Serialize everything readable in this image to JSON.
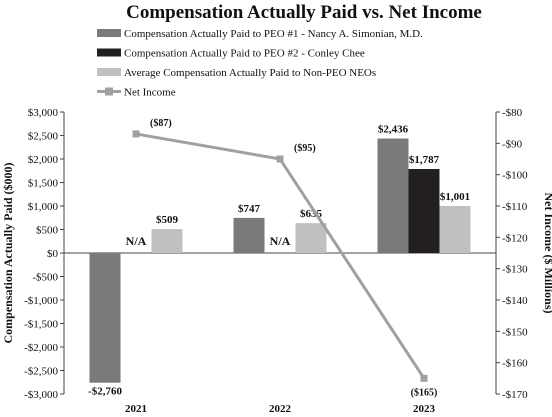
{
  "chart_data": {
    "type": "bar",
    "title": "Compensation Actually Paid vs. Net Income",
    "categories": [
      "2021",
      "2022",
      "2023"
    ],
    "series": [
      {
        "name": "Compensation Actually Paid to PEO #1 - Nancy A. Simonian, M.D.",
        "kind": "bar",
        "axis": "left",
        "color": "#7a7a7a",
        "values": [
          -2760,
          747,
          2436
        ],
        "labels": [
          "-$2,760",
          "$747",
          "$2,436"
        ]
      },
      {
        "name": "Compensation Actually Paid to PEO #2 - Conley Chee",
        "kind": "bar",
        "axis": "left",
        "color": "#231f20",
        "values": [
          null,
          null,
          1787
        ],
        "labels": [
          "N/A",
          "N/A",
          "$1,787"
        ]
      },
      {
        "name": "Average Compensation Actually Paid to Non-PEO NEOs",
        "kind": "bar",
        "axis": "left",
        "color": "#c0c0c0",
        "values": [
          509,
          635,
          1001
        ],
        "labels": [
          "$509",
          "$635",
          "$1,001"
        ]
      },
      {
        "name": "Net Income",
        "kind": "line",
        "axis": "right",
        "color": "#a0a0a0",
        "marker": "square",
        "values": [
          -87,
          -95,
          -165
        ],
        "labels": [
          "($87)",
          "($95)",
          "($165)"
        ]
      }
    ],
    "ylabel": "Compensation Actually Paid ($000)",
    "ylim": [
      -3000,
      3000
    ],
    "yticks": [
      3000,
      2500,
      2000,
      1500,
      1000,
      500,
      0,
      -500,
      -1000,
      -1500,
      -2000,
      -2500,
      -3000
    ],
    "ytick_labels": [
      "$3,000",
      "$2,500",
      "$2,000",
      "$1,500",
      "$1,000",
      "$500",
      "$0",
      "-$500",
      "-$1,000",
      "-$1,500",
      "-$2,000",
      "-$2,500",
      "-$3,000"
    ],
    "y2label": "Net Income ($ Millions)",
    "y2lim": [
      -170,
      -80
    ],
    "y2ticks": [
      -80,
      -90,
      -100,
      -110,
      -120,
      -130,
      -140,
      -150,
      -160,
      -170
    ],
    "y2tick_labels": [
      "-$80",
      "-$90",
      "-$100",
      "-$110",
      "-$120",
      "-$130",
      "-$140",
      "-$150",
      "-$160",
      "-$170"
    ],
    "grid": false,
    "legend_position": "top"
  }
}
